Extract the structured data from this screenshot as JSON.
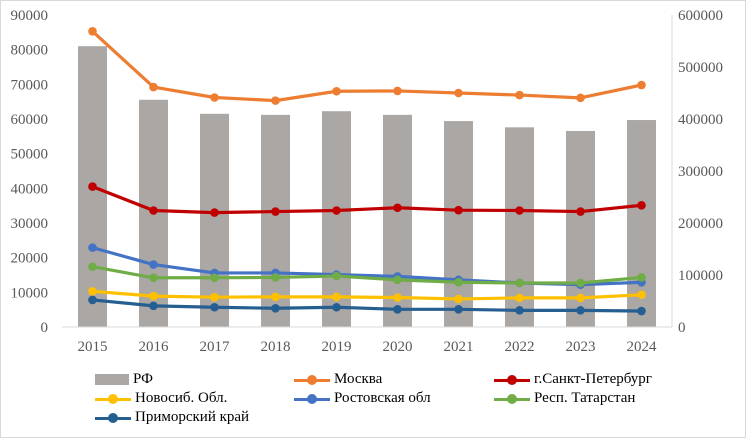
{
  "chart_data": {
    "type": "bar+line",
    "categories": [
      "2015",
      "2016",
      "2017",
      "2018",
      "2019",
      "2020",
      "2021",
      "2022",
      "2023",
      "2024"
    ],
    "bars": {
      "name": "РФ",
      "axis": "right",
      "values": [
        540000,
        437000,
        410000,
        408000,
        415000,
        408000,
        396000,
        384000,
        377000,
        398000
      ],
      "color": "#aba7a5"
    },
    "series": [
      {
        "name": "Москва",
        "axis": "left",
        "color": "#ed7d31",
        "values": [
          85300,
          69200,
          66200,
          65300,
          68000,
          68100,
          67500,
          66900,
          66100,
          69800
        ]
      },
      {
        "name": "г.Санкт-Петербург",
        "axis": "left",
        "color": "#c00000",
        "values": [
          40500,
          33600,
          33000,
          33300,
          33600,
          34400,
          33700,
          33600,
          33300,
          35100
        ]
      },
      {
        "name": "Новосиб. Обл.",
        "axis": "left",
        "color": "#ffc000",
        "values": [
          10300,
          8900,
          8600,
          8700,
          8700,
          8500,
          8100,
          8400,
          8400,
          9300
        ]
      },
      {
        "name": "Ростовская обл",
        "axis": "left",
        "color": "#4472c4",
        "values": [
          22900,
          18000,
          15600,
          15600,
          15100,
          14600,
          13600,
          12700,
          12200,
          12900
        ]
      },
      {
        "name": "Респ. Татарстан",
        "axis": "left",
        "color": "#70ad47",
        "values": [
          17400,
          14200,
          14200,
          14300,
          14700,
          13600,
          12900,
          12700,
          12700,
          14300
        ]
      },
      {
        "name": "Приморский край",
        "axis": "left",
        "color": "#255e91",
        "values": [
          7800,
          6100,
          5700,
          5400,
          5700,
          5100,
          5100,
          4800,
          4800,
          4600
        ]
      }
    ],
    "y_left": {
      "min": 0,
      "max": 90000,
      "step": 10000,
      "ticks": [
        "0",
        "10000",
        "20000",
        "30000",
        "40000",
        "50000",
        "60000",
        "70000",
        "80000",
        "90000"
      ]
    },
    "y_right": {
      "min": 0,
      "max": 600000,
      "step": 100000,
      "ticks": [
        "0",
        "100000",
        "200000",
        "300000",
        "400000",
        "500000",
        "600000"
      ]
    },
    "grid": false,
    "legend_position": "bottom"
  }
}
